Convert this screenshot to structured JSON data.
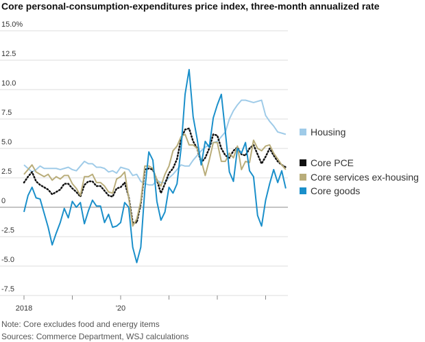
{
  "chart_data": {
    "type": "line",
    "title": "Core personal-consumption-expenditures price index, three-month annualized rate",
    "note": "Note: Core excludes food and energy items",
    "source": "Sources: Commerce Department, WSJ calculations",
    "categories": [
      "2018",
      null,
      null,
      null,
      null,
      null,
      null,
      null,
      null,
      null,
      null,
      null,
      null,
      null,
      null,
      null,
      null,
      null,
      null,
      null,
      null,
      null,
      null,
      null,
      "'20",
      null,
      null,
      null,
      null,
      null,
      null,
      null,
      null,
      null,
      null,
      null,
      null,
      null,
      null,
      null,
      null,
      null,
      null,
      null,
      null,
      null,
      null,
      null,
      null,
      null,
      null,
      null,
      null,
      null,
      null,
      null,
      null,
      null,
      null,
      null,
      null,
      null,
      null,
      null,
      null,
      null
    ],
    "ylim": [
      -7.5,
      15
    ],
    "yticks": [
      {
        "value": -7.5,
        "label": "-7.5"
      },
      {
        "value": -5,
        "label": "-5.0"
      },
      {
        "value": -2.5,
        "label": "-2.5"
      },
      0,
      2.5,
      {
        "value": 5,
        "label": "5.0"
      },
      7.5,
      {
        "value": 10,
        "label": "10.0"
      },
      12.5,
      {
        "value": 15,
        "label": "15.0%"
      }
    ],
    "grid": true,
    "legend": "right",
    "series": [
      {
        "name": "Housing",
        "color": "#9fcbe8",
        "values": [
          3.6,
          3.3,
          3.0,
          3.2,
          3.5,
          3.3,
          3.3,
          3.3,
          3.3,
          3.2,
          3.3,
          3.4,
          3.2,
          3.1,
          3.5,
          3.9,
          3.7,
          3.7,
          3.4,
          3.4,
          3.3,
          3.0,
          3.1,
          2.9,
          3.4,
          3.3,
          3.2,
          2.7,
          2.8,
          2.2,
          2.0,
          1.9,
          1.9,
          2.3,
          2.1,
          2.1,
          2.5,
          2.8,
          3.2,
          3.6,
          3.5,
          3.5,
          4.0,
          4.4,
          4.8,
          5.1,
          5.3,
          5.5,
          5.6,
          6.0,
          6.4,
          7.5,
          8.2,
          8.7,
          9.1,
          9.1,
          9.0,
          8.9,
          9.0,
          9.1,
          7.8,
          7.3,
          6.9,
          6.4,
          6.3,
          6.2
        ]
      },
      {
        "name": "Core PCE",
        "color": "#111111",
        "line_style": "dotted",
        "values": [
          2.1,
          2.6,
          3.0,
          2.2,
          1.9,
          1.7,
          1.5,
          1.1,
          1.3,
          1.5,
          2.0,
          2.0,
          1.6,
          1.3,
          0.9,
          1.9,
          2.2,
          2.2,
          1.8,
          1.8,
          1.4,
          1.0,
          0.9,
          1.6,
          1.7,
          2.1,
          0.9,
          -1.3,
          -1.3,
          0.3,
          3.2,
          3.3,
          3.2,
          2.3,
          1.2,
          2.0,
          2.9,
          3.3,
          4.1,
          5.8,
          6.6,
          6.7,
          5.6,
          5.0,
          3.8,
          4.2,
          5.0,
          6.2,
          6.1,
          5.0,
          4.4,
          4.2,
          4.8,
          5.1,
          4.5,
          4.4,
          5.0,
          5.3,
          4.5,
          3.7,
          4.3,
          5.0,
          4.4,
          3.9,
          3.6,
          3.4
        ]
      },
      {
        "name": "Core services ex-housing",
        "color": "#b9ad7a",
        "values": [
          2.8,
          3.2,
          3.6,
          3.0,
          2.8,
          2.6,
          2.8,
          2.3,
          2.6,
          2.4,
          2.7,
          2.7,
          2.0,
          1.6,
          1.0,
          2.6,
          2.6,
          2.8,
          2.1,
          2.1,
          1.8,
          1.3,
          1.2,
          2.4,
          2.6,
          3.0,
          0.8,
          -1.6,
          -1.0,
          0.5,
          3.5,
          3.5,
          3.3,
          2.3,
          1.8,
          2.8,
          3.5,
          4.8,
          5.2,
          6.0,
          6.2,
          5.3,
          5.3,
          5.0,
          4.0,
          2.7,
          4.0,
          5.5,
          5.5,
          3.9,
          3.9,
          4.6,
          4.2,
          5.2,
          3.2,
          3.9,
          3.8,
          5.7,
          5.0,
          4.8,
          5.2,
          5.3,
          4.6,
          4.1,
          3.6,
          3.2
        ]
      },
      {
        "name": "Core goods",
        "color": "#1a8fca",
        "values": [
          -0.4,
          1.0,
          1.7,
          0.8,
          0.7,
          -0.5,
          -1.7,
          -3.2,
          -2.2,
          -1.3,
          -0.1,
          -0.9,
          0.5,
          0.0,
          0.4,
          -1.4,
          -0.3,
          0.6,
          0.1,
          0.1,
          -1.3,
          -0.6,
          -1.7,
          -1.6,
          -1.3,
          0.4,
          0.0,
          -3.4,
          -4.7,
          -3.4,
          1.5,
          4.7,
          4.0,
          0.5,
          -1.1,
          -0.4,
          1.7,
          1.2,
          2.0,
          5.0,
          9.6,
          11.7,
          7.7,
          5.8,
          3.6,
          5.6,
          5.1,
          7.6,
          8.7,
          9.6,
          6.4,
          3.0,
          2.2,
          5.0,
          4.6,
          5.5,
          3.1,
          2.6,
          -0.7,
          -1.6,
          0.6,
          2.0,
          3.2,
          2.1,
          3.1,
          1.6
        ]
      }
    ]
  }
}
